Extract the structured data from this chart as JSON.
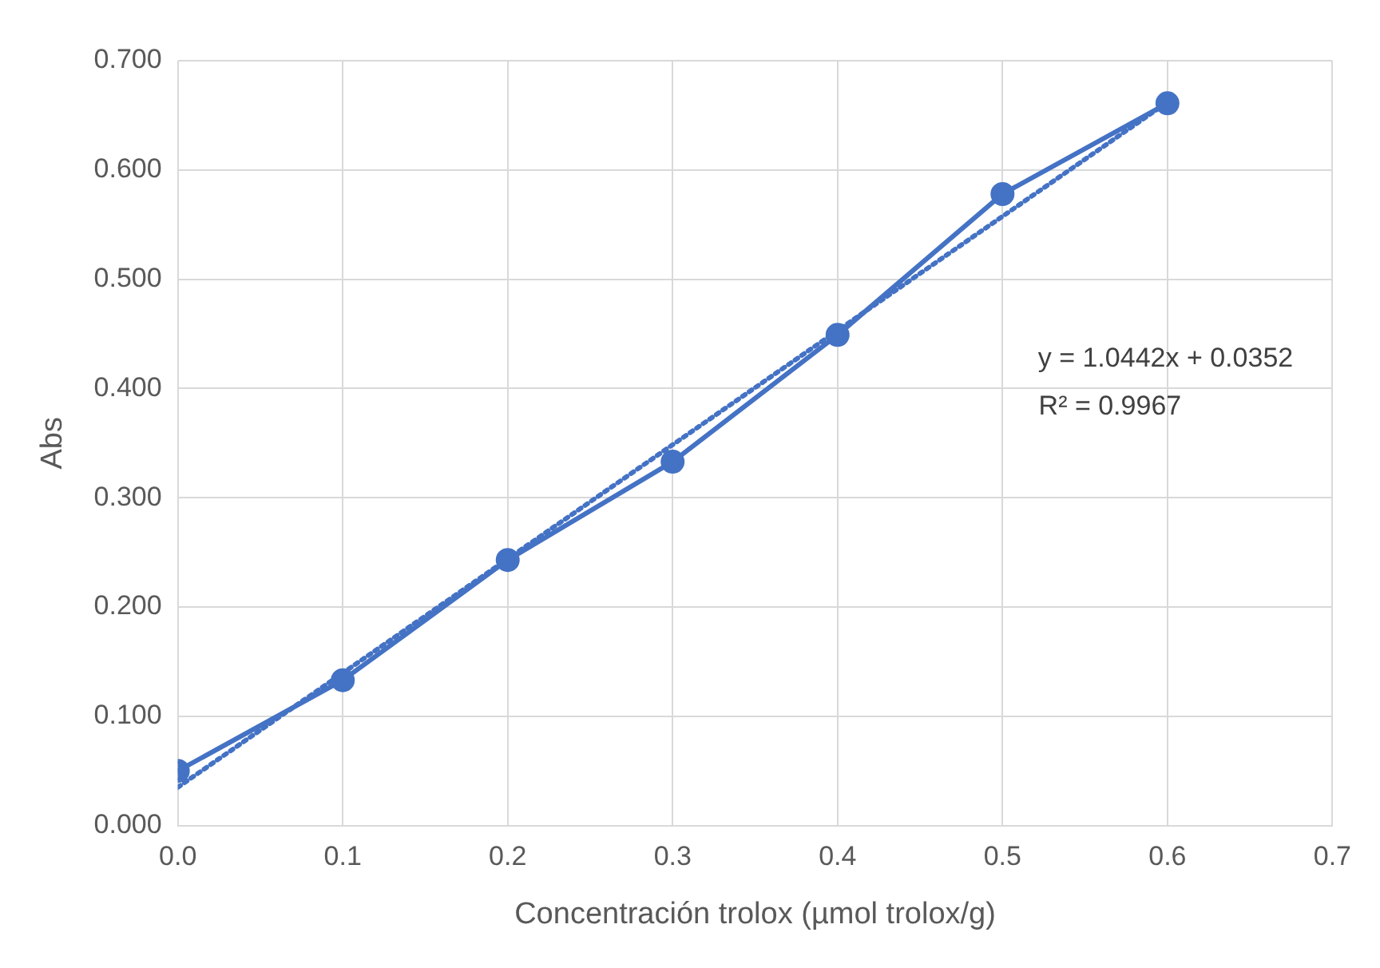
{
  "chart_data": {
    "type": "line",
    "xlabel": "Concentración trolox (µmol trolox/g)",
    "ylabel": "Abs",
    "x": [
      0,
      0.1,
      0.2,
      0.3,
      0.4,
      0.5,
      0.6
    ],
    "series": [
      {
        "color": "#4472c4",
        "marker": "circle",
        "line_style": "solid",
        "values": [
          0.05,
          0.133,
          0.243,
          0.333,
          0.449,
          0.578,
          0.661
        ]
      },
      {
        "color": "#4472c4",
        "marker": "none",
        "line_style": "dotted",
        "x": [
          0,
          0.6
        ],
        "values": [
          0.035,
          0.662
        ]
      }
    ],
    "annotations": [
      "y = 1.0442x + 0.0352",
      "R² = 0.9967"
    ],
    "xlim": [
      0,
      0.7
    ],
    "xticks": [
      {
        "value": 0,
        "label": "0.0"
      },
      {
        "value": 0.1,
        "label": "0.1"
      },
      {
        "value": 0.2,
        "label": "0.2"
      },
      {
        "value": 0.3,
        "label": "0.3"
      },
      {
        "value": 0.4,
        "label": "0.4"
      },
      {
        "value": 0.5,
        "label": "0.5"
      },
      {
        "value": 0.6,
        "label": "0.6"
      },
      {
        "value": 0.7,
        "label": "0.7"
      }
    ],
    "ylim": [
      0,
      0.7
    ],
    "yticks": [
      {
        "value": 0,
        "label": "0.000"
      },
      {
        "value": 0.1,
        "label": "0.100"
      },
      {
        "value": 0.2,
        "label": "0.200"
      },
      {
        "value": 0.3,
        "label": "0.300"
      },
      {
        "value": 0.4,
        "label": "0.400"
      },
      {
        "value": 0.5,
        "label": "0.500"
      },
      {
        "value": 0.6,
        "label": "0.600"
      },
      {
        "value": 0.7,
        "label": "0.700"
      }
    ],
    "grid": true
  }
}
